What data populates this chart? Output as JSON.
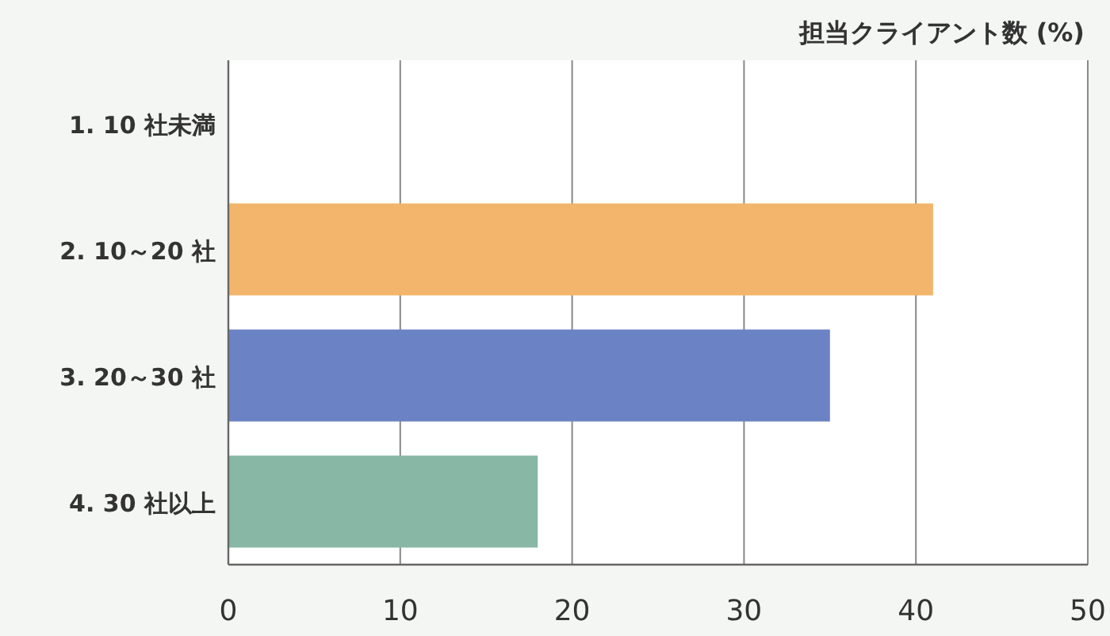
{
  "chart_data": {
    "type": "bar",
    "orientation": "horizontal",
    "xlabel": "担当クライアント数 (%)",
    "categories": [
      "1. 10 社未満",
      "2. 10～20 社",
      "3. 20～30 社",
      "4. 30 社以上"
    ],
    "values": [
      0,
      41,
      35,
      18
    ],
    "colors": [
      "#e8a35a",
      "#f2b56b",
      "#6b82c4",
      "#88b7a5"
    ],
    "xlim": [
      0,
      50
    ],
    "xticks": [
      0,
      10,
      20,
      30,
      40,
      50
    ],
    "grid": "x"
  }
}
